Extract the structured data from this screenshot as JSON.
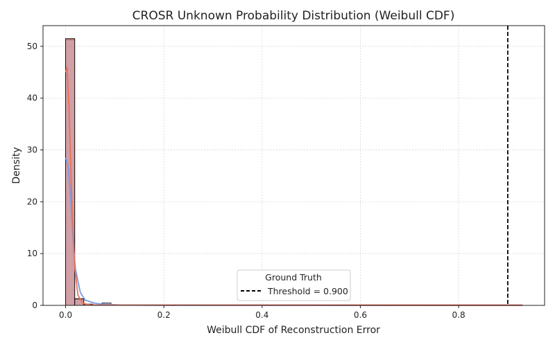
{
  "chart_data": {
    "type": "histogram",
    "title": "CROSR Unknown Probability Distribution (Weibull CDF)",
    "xlabel": "Weibull CDF of Reconstruction Error",
    "ylabel": "Density",
    "xlim": [
      -0.046,
      0.975
    ],
    "ylim": [
      0,
      54
    ],
    "xticks": [
      0.0,
      0.2,
      0.4,
      0.6,
      0.8
    ],
    "xtick_labels": [
      "0.0",
      "0.2",
      "0.4",
      "0.6",
      "0.8"
    ],
    "yticks": [
      0,
      10,
      20,
      30,
      40,
      50
    ],
    "ytick_labels": [
      "0",
      "10",
      "20",
      "30",
      "40",
      "50"
    ],
    "grid": true,
    "legend": {
      "title": "Ground Truth",
      "placement": "lower-center"
    },
    "threshold": {
      "value": 0.9,
      "label": "Threshold = 0.900",
      "style": "dashed",
      "color": "#000000"
    },
    "series": [
      {
        "color": "#7799e8",
        "bin_width": 0.0185,
        "bins": [
          {
            "x0": 0.0,
            "density": 51.3
          },
          {
            "x0": 0.0185,
            "density": 1.2
          },
          {
            "x0": 0.037,
            "density": 0.25
          },
          {
            "x0": 0.0555,
            "density": 0.1
          },
          {
            "x0": 0.074,
            "density": 0.45
          },
          {
            "x0": 0.0925,
            "density": 0.08
          }
        ],
        "kde": [
          [
            0.0,
            28.5
          ],
          [
            0.005,
            27.0
          ],
          [
            0.01,
            21.0
          ],
          [
            0.015,
            13.0
          ],
          [
            0.02,
            7.0
          ],
          [
            0.03,
            2.5
          ],
          [
            0.04,
            1.0
          ],
          [
            0.06,
            0.4
          ],
          [
            0.08,
            0.2
          ],
          [
            0.12,
            0.05
          ],
          [
            0.2,
            0.02
          ],
          [
            0.93,
            0.0
          ]
        ]
      },
      {
        "color": "#e8725a",
        "bin_width": 0.0185,
        "bins": [
          {
            "x0": 0.0,
            "density": 51.5
          },
          {
            "x0": 0.0185,
            "density": 1.3
          },
          {
            "x0": 0.037,
            "density": 0.2
          },
          {
            "x0": 0.0555,
            "density": 0.05
          },
          {
            "x0": 0.074,
            "density": 0.05
          },
          {
            "x0": 0.0925,
            "density": 0.05
          }
        ],
        "kde": [
          [
            0.0,
            45.0
          ],
          [
            0.003,
            46.0
          ],
          [
            0.007,
            38.0
          ],
          [
            0.012,
            22.0
          ],
          [
            0.018,
            8.0
          ],
          [
            0.025,
            2.0
          ],
          [
            0.035,
            0.4
          ],
          [
            0.05,
            0.1
          ],
          [
            0.15,
            0.05
          ],
          [
            0.5,
            0.03
          ],
          [
            0.93,
            0.0
          ]
        ]
      }
    ]
  }
}
